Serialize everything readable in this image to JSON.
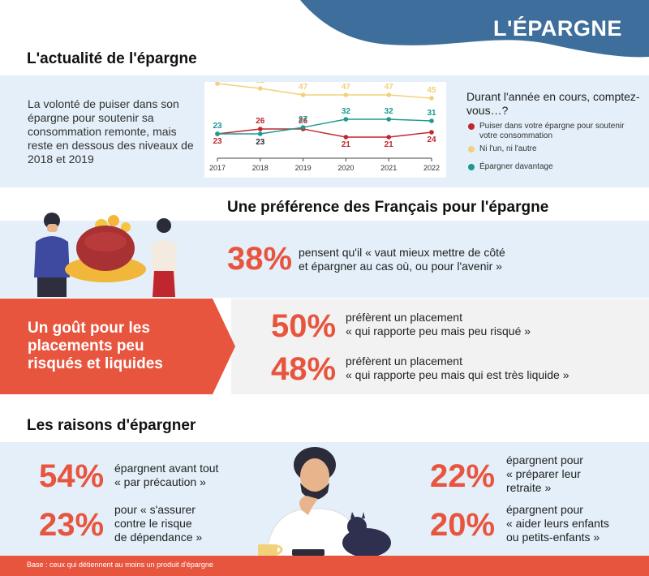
{
  "header": {
    "brand": "L'ÉPARGNE",
    "wave_color": "#3e6e9c"
  },
  "colors": {
    "accent": "#e8553f",
    "band": "#e4eff9",
    "series_red": "#c0262d",
    "series_yellow": "#f3d07a",
    "series_teal": "#1a9a92"
  },
  "section1": {
    "title": "L'actualité de l'épargne",
    "intro": "La volonté de puiser dans son épargne pour soutenir sa consommation remonte, mais reste en dessous des niveaux de 2018 et 2019",
    "legend_title": "Durant l'année en cours, comptez-vous…?",
    "legend": [
      {
        "label": "Puiser dans votre épargne pour soutenir votre consommation",
        "color": "#c0262d"
      },
      {
        "label": "Ni l'un, ni l'autre",
        "color": "#f3d07a"
      },
      {
        "label": "Épargner davantage",
        "color": "#1a9a92"
      }
    ]
  },
  "chart_data": {
    "type": "line",
    "x": [
      "2017",
      "2018",
      "2019",
      "2020",
      "2021",
      "2022"
    ],
    "series": [
      {
        "name": "Puiser dans votre épargne pour soutenir votre consommation",
        "values": [
          23,
          26,
          26,
          21,
          21,
          24
        ]
      },
      {
        "name": "Ni l'un, ni l'autre",
        "values": [
          54,
          51,
          47,
          47,
          47,
          45
        ]
      },
      {
        "name": "Épargner davantage",
        "values": [
          23,
          23,
          27,
          32,
          32,
          31
        ]
      }
    ],
    "title": "",
    "xlabel": "",
    "ylabel": "",
    "grid": false
  },
  "section2": {
    "title": "Une préférence des Français pour l'épargne",
    "pct": "38%",
    "text_1": "pensent qu'il « vaut mieux mettre de côté",
    "text_2": "et épargner au cas où, ou pour l'avenir »"
  },
  "section3": {
    "title": "Un goût pour les placements peu risqués et liquides",
    "items": [
      {
        "pct": "50%",
        "line_1": "préfèrent un placement",
        "line_2": "« qui rapporte peu mais peu risqué »"
      },
      {
        "pct": "48%",
        "line_1": "préfèrent un placement",
        "line_2": "« qui rapporte peu mais qui est très liquide »"
      }
    ]
  },
  "section4": {
    "title": "Les raisons d'épargner",
    "left": [
      {
        "pct": "54%",
        "lines": [
          "épargnent avant tout",
          "« par précaution »"
        ]
      },
      {
        "pct": "23%",
        "lines": [
          "pour « s'assurer",
          "contre le risque",
          "de dépendance »"
        ]
      }
    ],
    "right": [
      {
        "pct": "22%",
        "lines": [
          "épargnent pour",
          "« préparer leur",
          "retraite »"
        ]
      },
      {
        "pct": "20%",
        "lines": [
          "épargnent pour",
          "« aider leurs enfants",
          "ou petits-enfants »"
        ]
      }
    ]
  },
  "footer": {
    "note": "Base : ceux qui détiennent au moins un produit d'épargne"
  }
}
